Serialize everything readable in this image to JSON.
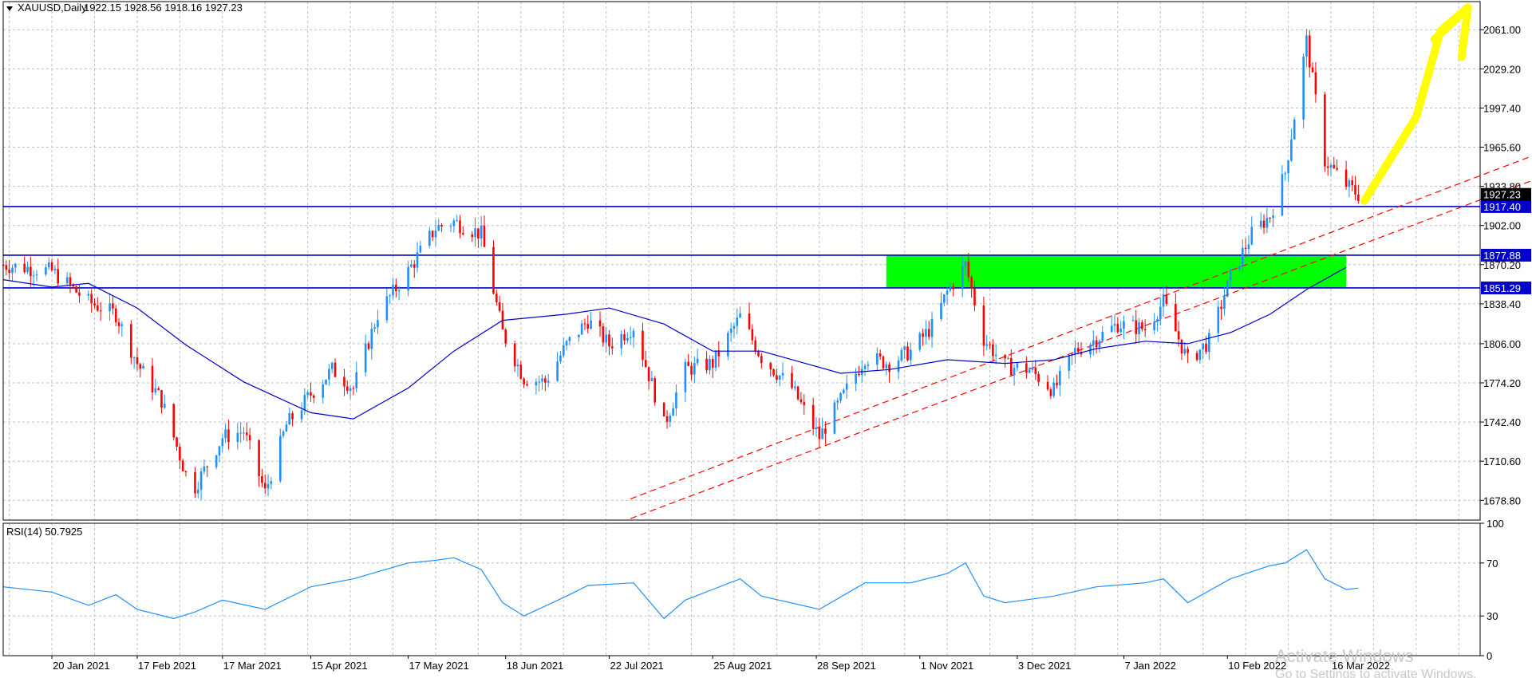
{
  "header": {
    "symbol_label": "XAUUSD,Daily",
    "ohlc_label": "1922.15 1928.56 1918.16 1927.23"
  },
  "rsi_header": {
    "label": "RSI(14) 50.7925"
  },
  "watermark": {
    "title": "Activate Windows",
    "subtitle": "Go to Settings to activate Windows."
  },
  "colors": {
    "bull_candle": "#1E90FF",
    "bear_candle": "#FF0000",
    "ma_line": "#0000CD",
    "level_line": "#0000CD",
    "trend_line": "#FF0000",
    "demand_zone": "#00FF00",
    "arrow": "#FFFF00",
    "rsi_line": "#1E90FF",
    "grid": "#C0C0C0"
  },
  "chart_data": [
    {
      "type": "candlestick",
      "title": "XAUUSD,Daily",
      "ohlc_last": {
        "open": 1922.15,
        "high": 1928.56,
        "low": 1918.16,
        "close": 1927.23
      },
      "ylim": [
        1662.8,
        2083.8
      ],
      "y_ticks": [
        1678.8,
        1710.6,
        1742.4,
        1774.2,
        1806.0,
        1838.4,
        1870.2,
        1902.0,
        1933.8,
        1965.6,
        1997.4,
        2029.2,
        2061.0
      ],
      "x_ticks": [
        "20 Jan 2021",
        "17 Feb 2021",
        "17 Mar 2021",
        "15 Apr 2021",
        "17 May 2021",
        "18 Jun 2021",
        "22 Jul 2021",
        "25 Aug 2021",
        "28 Sep 2021",
        "1 Nov 2021",
        "3 Dec 2021",
        "7 Jan 2022",
        "10 Feb 2022",
        "16 Mar 2022"
      ],
      "grid": true,
      "current_price_label": "1927.23",
      "horizontal_levels": [
        {
          "label": "1917.40",
          "value": 1917.4
        },
        {
          "label": "1877.88",
          "value": 1877.88
        },
        {
          "label": "1851.29",
          "value": 1851.29
        }
      ],
      "demand_zone": {
        "from_date": "2021-10-21",
        "to_date": "2022-03-21",
        "low": 1851.29,
        "high": 1877.88
      },
      "trend_lines": [
        {
          "points": [
            [
              "2021-07-29",
              1680
            ],
            [
              "2022-05-28",
              1965
            ]
          ]
        },
        {
          "points": [
            [
              "2021-07-29",
              1664
            ],
            [
              "2022-05-28",
              1945
            ]
          ]
        }
      ],
      "arrow": {
        "points": [
          [
            "2022-03-27",
            1922
          ],
          [
            "2022-04-13",
            1990
          ],
          [
            "2022-04-21",
            2060
          ],
          [
            "2022-04-30",
            2079
          ]
        ]
      },
      "price_path": [
        [
          "2021-01-04",
          1870
        ],
        [
          "2021-01-20",
          1865
        ],
        [
          "2021-02-01",
          1840
        ],
        [
          "2021-02-10",
          1830
        ],
        [
          "2021-02-17",
          1790
        ],
        [
          "2021-02-25",
          1760
        ],
        [
          "2021-03-05",
          1700
        ],
        [
          "2021-03-08",
          1690
        ],
        [
          "2021-03-17",
          1730
        ],
        [
          "2021-03-24",
          1735
        ],
        [
          "2021-03-31",
          1685
        ],
        [
          "2021-04-07",
          1740
        ],
        [
          "2021-04-15",
          1765
        ],
        [
          "2021-04-22",
          1785
        ],
        [
          "2021-04-29",
          1770
        ],
        [
          "2021-05-07",
          1830
        ],
        [
          "2021-05-17",
          1865
        ],
        [
          "2021-05-26",
          1900
        ],
        [
          "2021-06-01",
          1905
        ],
        [
          "2021-06-10",
          1895
        ],
        [
          "2021-06-17",
          1815
        ],
        [
          "2021-06-24",
          1778
        ],
        [
          "2021-07-01",
          1775
        ],
        [
          "2021-07-08",
          1805
        ],
        [
          "2021-07-15",
          1825
        ],
        [
          "2021-07-22",
          1805
        ],
        [
          "2021-07-30",
          1820
        ],
        [
          "2021-08-06",
          1765
        ],
        [
          "2021-08-09",
          1740
        ],
        [
          "2021-08-16",
          1785
        ],
        [
          "2021-08-25",
          1790
        ],
        [
          "2021-09-03",
          1828
        ],
        [
          "2021-09-10",
          1795
        ],
        [
          "2021-09-20",
          1770
        ],
        [
          "2021-09-29",
          1730
        ],
        [
          "2021-10-06",
          1760
        ],
        [
          "2021-10-14",
          1795
        ],
        [
          "2021-10-22",
          1790
        ],
        [
          "2021-10-29",
          1800
        ],
        [
          "2021-11-05",
          1820
        ],
        [
          "2021-11-10",
          1848
        ],
        [
          "2021-11-16",
          1870
        ],
        [
          "2021-11-22",
          1810
        ],
        [
          "2021-11-29",
          1788
        ],
        [
          "2021-12-07",
          1785
        ],
        [
          "2021-12-15",
          1768
        ],
        [
          "2021-12-22",
          1800
        ],
        [
          "2021-12-29",
          1810
        ],
        [
          "2022-01-05",
          1822
        ],
        [
          "2022-01-14",
          1818
        ],
        [
          "2022-01-20",
          1840
        ],
        [
          "2022-01-28",
          1792
        ],
        [
          "2022-02-04",
          1808
        ],
        [
          "2022-02-11",
          1860
        ],
        [
          "2022-02-18",
          1895
        ],
        [
          "2022-02-24",
          1910
        ],
        [
          "2022-03-01",
          1945
        ],
        [
          "2022-03-08",
          2052
        ],
        [
          "2022-03-14",
          1955
        ],
        [
          "2022-03-21",
          1935
        ],
        [
          "2022-03-25",
          1927
        ]
      ],
      "moving_average": [
        [
          "2021-01-04",
          1858
        ],
        [
          "2021-01-20",
          1852
        ],
        [
          "2021-02-01",
          1855
        ],
        [
          "2021-02-17",
          1835
        ],
        [
          "2021-03-05",
          1805
        ],
        [
          "2021-03-24",
          1775
        ],
        [
          "2021-04-15",
          1750
        ],
        [
          "2021-04-29",
          1745
        ],
        [
          "2021-05-17",
          1770
        ],
        [
          "2021-06-01",
          1800
        ],
        [
          "2021-06-17",
          1825
        ],
        [
          "2021-07-08",
          1830
        ],
        [
          "2021-07-22",
          1835
        ],
        [
          "2021-08-09",
          1822
        ],
        [
          "2021-08-25",
          1800
        ],
        [
          "2021-09-10",
          1800
        ],
        [
          "2021-10-06",
          1782
        ],
        [
          "2021-10-22",
          1785
        ],
        [
          "2021-11-10",
          1793
        ],
        [
          "2021-11-29",
          1790
        ],
        [
          "2021-12-15",
          1793
        ],
        [
          "2021-12-29",
          1802
        ],
        [
          "2022-01-14",
          1808
        ],
        [
          "2022-01-28",
          1806
        ],
        [
          "2022-02-11",
          1815
        ],
        [
          "2022-02-24",
          1830
        ],
        [
          "2022-03-08",
          1850
        ],
        [
          "2022-03-21",
          1868
        ]
      ]
    },
    {
      "type": "line",
      "title": "RSI(14) 50.7925",
      "ylim": [
        0,
        100
      ],
      "y_ticks": [
        0,
        30,
        70,
        100
      ],
      "series": [
        {
          "name": "RSI(14)",
          "points": [
            [
              "2021-01-04",
              52
            ],
            [
              "2021-01-20",
              48
            ],
            [
              "2021-02-01",
              38
            ],
            [
              "2021-02-10",
              46
            ],
            [
              "2021-02-17",
              35
            ],
            [
              "2021-03-01",
              28
            ],
            [
              "2021-03-08",
              33
            ],
            [
              "2021-03-17",
              42
            ],
            [
              "2021-03-31",
              35
            ],
            [
              "2021-04-15",
              52
            ],
            [
              "2021-04-29",
              58
            ],
            [
              "2021-05-17",
              70
            ],
            [
              "2021-05-26",
              72
            ],
            [
              "2021-06-01",
              74
            ],
            [
              "2021-06-10",
              65
            ],
            [
              "2021-06-17",
              40
            ],
            [
              "2021-06-24",
              30
            ],
            [
              "2021-07-08",
              45
            ],
            [
              "2021-07-15",
              53
            ],
            [
              "2021-07-30",
              55
            ],
            [
              "2021-08-09",
              28
            ],
            [
              "2021-08-16",
              42
            ],
            [
              "2021-08-25",
              50
            ],
            [
              "2021-09-03",
              58
            ],
            [
              "2021-09-10",
              45
            ],
            [
              "2021-09-29",
              35
            ],
            [
              "2021-10-14",
              55
            ],
            [
              "2021-10-29",
              55
            ],
            [
              "2021-11-10",
              62
            ],
            [
              "2021-11-16",
              70
            ],
            [
              "2021-11-22",
              45
            ],
            [
              "2021-11-29",
              40
            ],
            [
              "2021-12-15",
              45
            ],
            [
              "2021-12-29",
              52
            ],
            [
              "2022-01-14",
              55
            ],
            [
              "2022-01-20",
              58
            ],
            [
              "2022-01-28",
              40
            ],
            [
              "2022-02-11",
              58
            ],
            [
              "2022-02-24",
              68
            ],
            [
              "2022-03-01",
              70
            ],
            [
              "2022-03-08",
              80
            ],
            [
              "2022-03-14",
              58
            ],
            [
              "2022-03-21",
              50
            ],
            [
              "2022-03-25",
              51
            ]
          ]
        }
      ]
    }
  ]
}
